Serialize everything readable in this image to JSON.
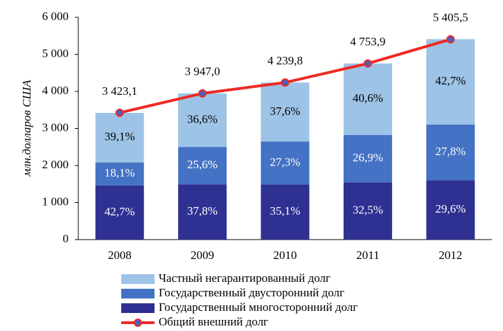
{
  "chart_data": {
    "type": "bar",
    "y_label": "млн.долларов США",
    "categories": [
      "2008",
      "2009",
      "2010",
      "2011",
      "2012"
    ],
    "stacked": true,
    "series": [
      {
        "name": "Государственный многосторонний долг",
        "color": "#2e3192",
        "label_color": "#ffffff",
        "values": [
          1462,
          1492,
          1488,
          1545,
          1600
        ],
        "value_labels": [
          "42,7%",
          "37,8%",
          "35,1%",
          "32,5%",
          "29,6%"
        ]
      },
      {
        "name": "Государственный двусторонний долг",
        "color": "#4472c4",
        "label_color": "#ffffff",
        "values": [
          620,
          1010,
          1157,
          1279,
          1503
        ],
        "value_labels": [
          "18,1%",
          "25,6%",
          "27,3%",
          "26,9%",
          "27,8%"
        ]
      },
      {
        "name": "Частный негарантированный долг",
        "color": "#9dc3e6",
        "label_color": "#000000",
        "values": [
          1338,
          1445,
          1594,
          1930,
          2308
        ],
        "value_labels": [
          "39,1%",
          "36,6%",
          "37,6%",
          "40,6%",
          "42,7%"
        ]
      }
    ],
    "line": {
      "type": "line",
      "name": "Общий внешний долг",
      "color": "#ee2a24",
      "marker_color": "#4a5fc1",
      "values": [
        3423.1,
        3947.0,
        4239.8,
        4753.9,
        5405.5
      ],
      "value_labels": [
        "3 423,1",
        "3 947,0",
        "4 239,8",
        "4 753,9",
        "5 405,5"
      ]
    },
    "ylim": [
      0,
      6000
    ],
    "yticks": [
      0,
      {
        "value": 1000,
        "label": "1 000"
      },
      {
        "value": 2000,
        "label": "2 000"
      },
      {
        "value": 3000,
        "label": "3 000"
      },
      {
        "value": 4000,
        "label": "4 000"
      },
      {
        "value": 5000,
        "label": "5 000"
      },
      {
        "value": 6000,
        "label": "6 000"
      }
    ],
    "grid": false
  }
}
